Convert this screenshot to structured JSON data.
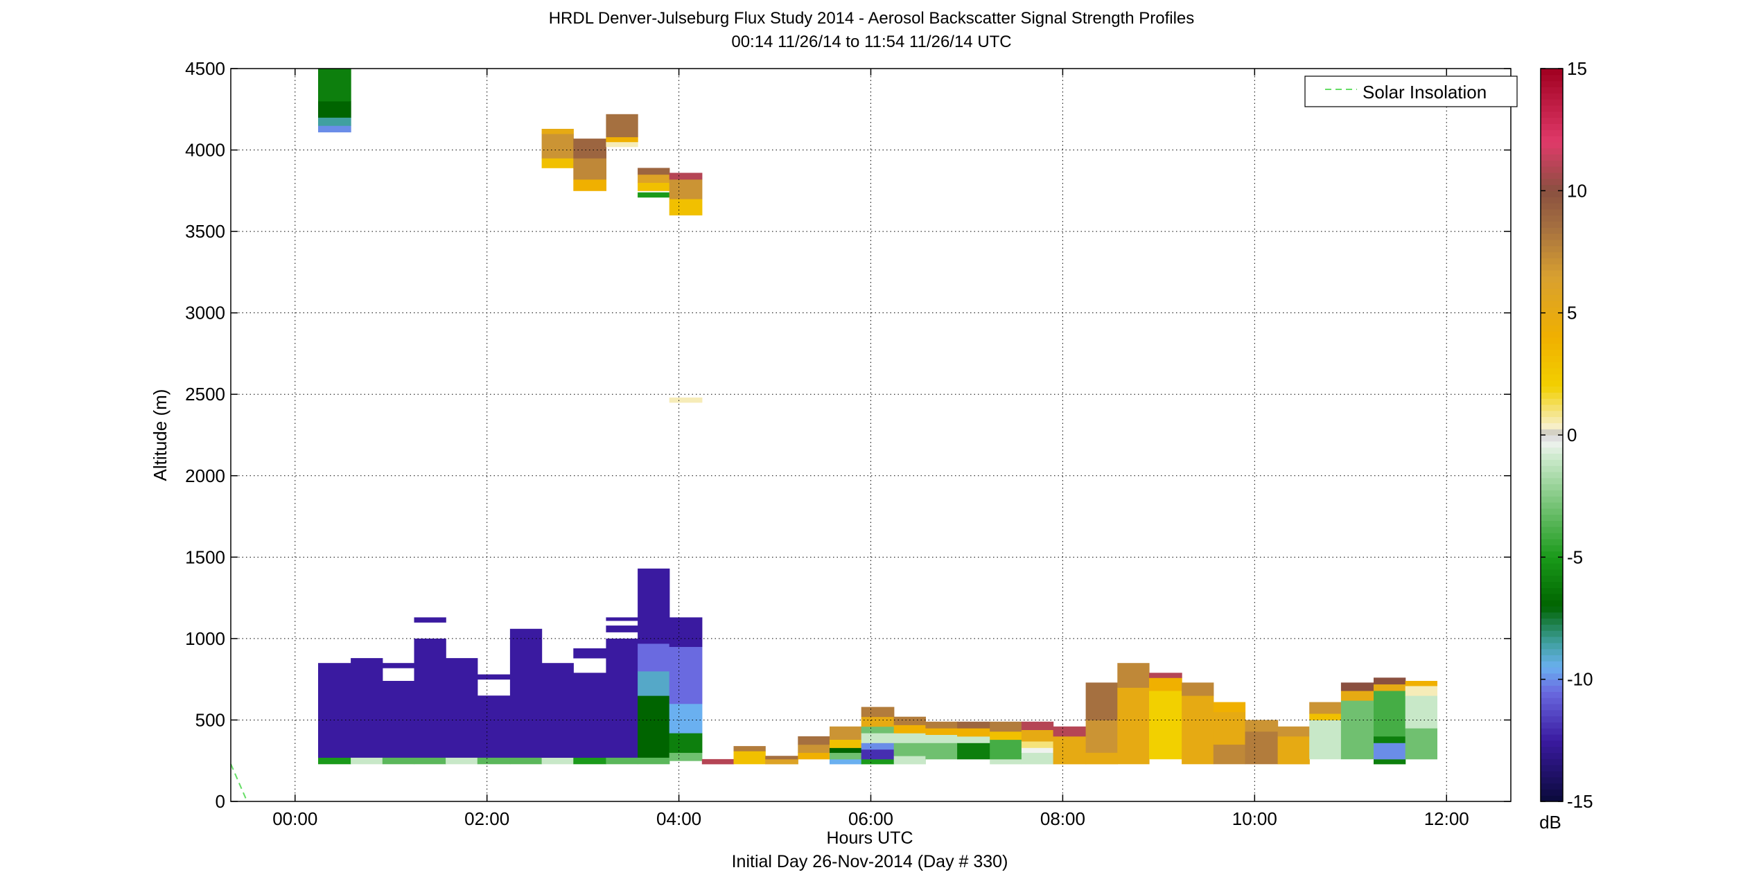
{
  "title_lines": [
    "HRDL Denver-Julseburg Flux Study 2014 - Aerosol Backscatter Signal Strength Profiles",
    "00:14 11/26/14 to 11:54 11/26/14  UTC"
  ],
  "xlabel": "Hours UTC",
  "xsublabel": "Initial Day 26-Nov-2014 (Day # 330)",
  "ylabel": "Altitude (m)",
  "colorbar_unit": "dB",
  "legend_label": "Solar Insolation",
  "colors": {
    "solar_line": "#66dd66",
    "grid": "#000000"
  },
  "chart_data": {
    "type": "heatmap",
    "xlim_hours": [
      -0.67,
      12.67
    ],
    "ylim": [
      0,
      4500
    ],
    "grid": true,
    "legend_position": "top-right",
    "x_ticks": [
      {
        "v": 0,
        "label": "00:00"
      },
      {
        "v": 2,
        "label": "02:00"
      },
      {
        "v": 4,
        "label": "04:00"
      },
      {
        "v": 6,
        "label": "06:00"
      },
      {
        "v": 8,
        "label": "08:00"
      },
      {
        "v": 10,
        "label": "10:00"
      },
      {
        "v": 12,
        "label": "12:00"
      }
    ],
    "y_ticks": [
      0,
      500,
      1000,
      1500,
      2000,
      2500,
      3000,
      3500,
      4000,
      4500
    ],
    "colorbar": {
      "min": -15,
      "max": 15,
      "ticks": [
        -15,
        -10,
        -5,
        0,
        5,
        10,
        15
      ],
      "unit": "dB",
      "stops": [
        {
          "v": -15,
          "c": "#0a0a3a"
        },
        {
          "v": -12.5,
          "c": "#3a1aa0"
        },
        {
          "v": -10.5,
          "c": "#6a6ae0"
        },
        {
          "v": -9.5,
          "c": "#6ab0f0"
        },
        {
          "v": -8.5,
          "c": "#40a0a0"
        },
        {
          "v": -7,
          "c": "#006400"
        },
        {
          "v": -5,
          "c": "#1a9a1a"
        },
        {
          "v": -3,
          "c": "#70c070"
        },
        {
          "v": -1,
          "c": "#c8e8c8"
        },
        {
          "v": -0.2,
          "c": "#f4f4f4"
        },
        {
          "v": 0,
          "c": "#bbbbbb"
        },
        {
          "v": 0.3,
          "c": "#f7f0d0"
        },
        {
          "v": 2,
          "c": "#f2d000"
        },
        {
          "v": 4,
          "c": "#f0b000"
        },
        {
          "v": 6.5,
          "c": "#d8a030"
        },
        {
          "v": 8.5,
          "c": "#a57040"
        },
        {
          "v": 10,
          "c": "#8a5040"
        },
        {
          "v": 12,
          "c": "#e03a6a"
        },
        {
          "v": 15,
          "c": "#a00020"
        }
      ]
    },
    "profiles": [
      {
        "t0": 0.24,
        "t1": 0.58,
        "segments": [
          {
            "y0": 230,
            "y1": 270,
            "v": -5
          },
          {
            "y0": 270,
            "y1": 850,
            "v": -12.5
          }
        ]
      },
      {
        "t0": 0.24,
        "t1": 0.58,
        "segments": [
          {
            "y0": 4110,
            "y1": 4150,
            "v": -10
          },
          {
            "y0": 4150,
            "y1": 4200,
            "v": -8.5
          },
          {
            "y0": 4200,
            "y1": 4300,
            "v": -7
          },
          {
            "y0": 4300,
            "y1": 4500,
            "v": -6
          }
        ]
      },
      {
        "t0": 0.58,
        "t1": 0.91,
        "segments": [
          {
            "y0": 230,
            "y1": 270,
            "v": -1
          },
          {
            "y0": 270,
            "y1": 880,
            "v": -12.5
          }
        ]
      },
      {
        "t0": 0.91,
        "t1": 1.24,
        "segments": [
          {
            "y0": 230,
            "y1": 270,
            "v": -3.5
          },
          {
            "y0": 270,
            "y1": 740,
            "v": -12.5
          },
          {
            "y0": 820,
            "y1": 850,
            "v": -12.5
          }
        ]
      },
      {
        "t0": 1.24,
        "t1": 1.57,
        "segments": [
          {
            "y0": 230,
            "y1": 270,
            "v": -3.5
          },
          {
            "y0": 270,
            "y1": 1000,
            "v": -12.5
          },
          {
            "y0": 1100,
            "y1": 1130,
            "v": -12.5
          }
        ]
      },
      {
        "t0": 1.57,
        "t1": 1.9,
        "segments": [
          {
            "y0": 230,
            "y1": 270,
            "v": -1
          },
          {
            "y0": 270,
            "y1": 880,
            "v": -12.5
          }
        ]
      },
      {
        "t0": 1.9,
        "t1": 2.24,
        "segments": [
          {
            "y0": 230,
            "y1": 270,
            "v": -3.5
          },
          {
            "y0": 270,
            "y1": 650,
            "v": -12.5
          },
          {
            "y0": 750,
            "y1": 780,
            "v": -12.5
          }
        ]
      },
      {
        "t0": 2.24,
        "t1": 2.57,
        "segments": [
          {
            "y0": 230,
            "y1": 270,
            "v": -3.5
          },
          {
            "y0": 270,
            "y1": 1060,
            "v": -12.5
          }
        ]
      },
      {
        "t0": 2.57,
        "t1": 2.9,
        "segments": [
          {
            "y0": 230,
            "y1": 270,
            "v": -1
          },
          {
            "y0": 270,
            "y1": 850,
            "v": -12.5
          }
        ]
      },
      {
        "t0": 2.57,
        "t1": 2.9,
        "segments": [
          {
            "y0": 3890,
            "y1": 3950,
            "v": 3
          },
          {
            "y0": 3950,
            "y1": 4100,
            "v": 7
          },
          {
            "y0": 4100,
            "y1": 4130,
            "v": 5
          }
        ]
      },
      {
        "t0": 2.9,
        "t1": 3.24,
        "segments": [
          {
            "y0": 230,
            "y1": 270,
            "v": -5
          },
          {
            "y0": 270,
            "y1": 790,
            "v": -12.5
          },
          {
            "y0": 880,
            "y1": 940,
            "v": -12.5
          }
        ]
      },
      {
        "t0": 2.9,
        "t1": 3.24,
        "segments": [
          {
            "y0": 3750,
            "y1": 3820,
            "v": 4
          },
          {
            "y0": 3820,
            "y1": 3950,
            "v": 7.5
          },
          {
            "y0": 3950,
            "y1": 4070,
            "v": 9
          }
        ]
      },
      {
        "t0": 3.24,
        "t1": 3.57,
        "segments": [
          {
            "y0": 230,
            "y1": 270,
            "v": -3.5
          },
          {
            "y0": 270,
            "y1": 1000,
            "v": -12.5
          },
          {
            "y0": 1040,
            "y1": 1080,
            "v": -12.5
          },
          {
            "y0": 1110,
            "y1": 1130,
            "v": -12.5
          }
        ]
      },
      {
        "t0": 3.24,
        "t1": 3.57,
        "segments": [
          {
            "y0": 4020,
            "y1": 4050,
            "v": 0.5
          },
          {
            "y0": 4050,
            "y1": 4080,
            "v": 4
          },
          {
            "y0": 4080,
            "y1": 4220,
            "v": 8.5
          }
        ]
      },
      {
        "t0": 3.57,
        "t1": 3.9,
        "segments": [
          {
            "y0": 230,
            "y1": 270,
            "v": -3.5
          },
          {
            "y0": 270,
            "y1": 650,
            "v": -7
          },
          {
            "y0": 650,
            "y1": 800,
            "v": -9
          },
          {
            "y0": 800,
            "y1": 970,
            "v": -10.5
          },
          {
            "y0": 970,
            "y1": 1430,
            "v": -12.5
          }
        ]
      },
      {
        "t0": 3.57,
        "t1": 3.9,
        "segments": [
          {
            "y0": 3710,
            "y1": 3740,
            "v": -5
          },
          {
            "y0": 3750,
            "y1": 3800,
            "v": 3
          },
          {
            "y0": 3800,
            "y1": 3850,
            "v": 6
          },
          {
            "y0": 3850,
            "y1": 3890,
            "v": 9
          }
        ]
      },
      {
        "t0": 3.9,
        "t1": 4.24,
        "segments": [
          {
            "y0": 250,
            "y1": 300,
            "v": -3
          },
          {
            "y0": 300,
            "y1": 420,
            "v": -6
          },
          {
            "y0": 420,
            "y1": 600,
            "v": -9.5
          },
          {
            "y0": 600,
            "y1": 950,
            "v": -10.5
          },
          {
            "y0": 950,
            "y1": 1130,
            "v": -12.5
          }
        ]
      },
      {
        "t0": 3.9,
        "t1": 4.24,
        "segments": [
          {
            "y0": 3600,
            "y1": 3700,
            "v": 3
          },
          {
            "y0": 3700,
            "y1": 3820,
            "v": 7
          },
          {
            "y0": 3820,
            "y1": 3860,
            "v": 11
          }
        ]
      },
      {
        "t0": 3.9,
        "t1": 4.24,
        "segments": [
          {
            "y0": 2450,
            "y1": 2480,
            "v": 0.5
          }
        ]
      },
      {
        "t0": 4.24,
        "t1": 4.57,
        "segments": [
          {
            "y0": 230,
            "y1": 260,
            "v": 11
          }
        ]
      },
      {
        "t0": 4.57,
        "t1": 4.9,
        "segments": [
          {
            "y0": 230,
            "y1": 310,
            "v": 3
          },
          {
            "y0": 310,
            "y1": 340,
            "v": 8
          }
        ]
      },
      {
        "t0": 4.9,
        "t1": 5.24,
        "segments": [
          {
            "y0": 230,
            "y1": 260,
            "v": 6
          },
          {
            "y0": 260,
            "y1": 280,
            "v": 8.5
          }
        ]
      },
      {
        "t0": 5.24,
        "t1": 5.57,
        "segments": [
          {
            "y0": 260,
            "y1": 300,
            "v": 4
          },
          {
            "y0": 300,
            "y1": 350,
            "v": 7
          },
          {
            "y0": 350,
            "y1": 400,
            "v": 8.5
          }
        ]
      },
      {
        "t0": 5.57,
        "t1": 5.9,
        "segments": [
          {
            "y0": 230,
            "y1": 260,
            "v": -9.5
          },
          {
            "y0": 260,
            "y1": 300,
            "v": -3
          },
          {
            "y0": 300,
            "y1": 330,
            "v": -7
          },
          {
            "y0": 330,
            "y1": 380,
            "v": 3
          },
          {
            "y0": 380,
            "y1": 460,
            "v": 7
          }
        ]
      },
      {
        "t0": 5.9,
        "t1": 6.24,
        "segments": [
          {
            "y0": 230,
            "y1": 260,
            "v": -5
          },
          {
            "y0": 260,
            "y1": 320,
            "v": -12
          },
          {
            "y0": 320,
            "y1": 360,
            "v": -10
          },
          {
            "y0": 360,
            "y1": 420,
            "v": -1
          },
          {
            "y0": 420,
            "y1": 460,
            "v": -3
          },
          {
            "y0": 460,
            "y1": 520,
            "v": 5
          },
          {
            "y0": 520,
            "y1": 580,
            "v": 8
          }
        ]
      },
      {
        "t0": 6.24,
        "t1": 6.57,
        "segments": [
          {
            "y0": 230,
            "y1": 280,
            "v": -1
          },
          {
            "y0": 280,
            "y1": 360,
            "v": -3
          },
          {
            "y0": 360,
            "y1": 420,
            "v": -1
          },
          {
            "y0": 420,
            "y1": 470,
            "v": 4
          },
          {
            "y0": 470,
            "y1": 520,
            "v": 8
          }
        ]
      },
      {
        "t0": 6.57,
        "t1": 6.9,
        "segments": [
          {
            "y0": 260,
            "y1": 360,
            "v": -3
          },
          {
            "y0": 360,
            "y1": 410,
            "v": -1
          },
          {
            "y0": 410,
            "y1": 450,
            "v": 4
          },
          {
            "y0": 450,
            "y1": 490,
            "v": 8
          }
        ]
      },
      {
        "t0": 6.9,
        "t1": 7.24,
        "segments": [
          {
            "y0": 260,
            "y1": 360,
            "v": -6
          },
          {
            "y0": 360,
            "y1": 400,
            "v": -1
          },
          {
            "y0": 400,
            "y1": 450,
            "v": 4
          },
          {
            "y0": 450,
            "y1": 490,
            "v": 9
          }
        ]
      },
      {
        "t0": 7.24,
        "t1": 7.57,
        "segments": [
          {
            "y0": 230,
            "y1": 260,
            "v": -1
          },
          {
            "y0": 260,
            "y1": 380,
            "v": -4
          },
          {
            "y0": 380,
            "y1": 430,
            "v": 3
          },
          {
            "y0": 430,
            "y1": 490,
            "v": 8
          }
        ]
      },
      {
        "t0": 7.57,
        "t1": 7.9,
        "segments": [
          {
            "y0": 230,
            "y1": 300,
            "v": -1
          },
          {
            "y0": 300,
            "y1": 330,
            "v": -0.3
          },
          {
            "y0": 330,
            "y1": 370,
            "v": 1
          },
          {
            "y0": 370,
            "y1": 440,
            "v": 5
          },
          {
            "y0": 440,
            "y1": 490,
            "v": 11
          }
        ]
      },
      {
        "t0": 7.9,
        "t1": 8.24,
        "segments": [
          {
            "y0": 230,
            "y1": 400,
            "v": 5
          },
          {
            "y0": 400,
            "y1": 460,
            "v": 11
          }
        ]
      },
      {
        "t0": 8.24,
        "t1": 8.57,
        "segments": [
          {
            "y0": 230,
            "y1": 300,
            "v": 5
          },
          {
            "y0": 300,
            "y1": 500,
            "v": 7
          },
          {
            "y0": 500,
            "y1": 730,
            "v": 8.5
          }
        ]
      },
      {
        "t0": 8.57,
        "t1": 8.9,
        "segments": [
          {
            "y0": 230,
            "y1": 700,
            "v": 5
          },
          {
            "y0": 700,
            "y1": 850,
            "v": 7.5
          }
        ]
      },
      {
        "t0": 8.9,
        "t1": 9.24,
        "segments": [
          {
            "y0": 260,
            "y1": 680,
            "v": 2
          },
          {
            "y0": 680,
            "y1": 760,
            "v": 4
          },
          {
            "y0": 760,
            "y1": 790,
            "v": 11
          }
        ]
      },
      {
        "t0": 9.24,
        "t1": 9.57,
        "segments": [
          {
            "y0": 230,
            "y1": 650,
            "v": 5
          },
          {
            "y0": 650,
            "y1": 730,
            "v": 7.5
          }
        ]
      },
      {
        "t0": 9.57,
        "t1": 9.9,
        "segments": [
          {
            "y0": 230,
            "y1": 350,
            "v": 7.5
          },
          {
            "y0": 350,
            "y1": 550,
            "v": 5
          },
          {
            "y0": 550,
            "y1": 610,
            "v": 4
          }
        ]
      },
      {
        "t0": 9.9,
        "t1": 10.24,
        "segments": [
          {
            "y0": 230,
            "y1": 430,
            "v": 8
          },
          {
            "y0": 430,
            "y1": 500,
            "v": 7
          }
        ]
      },
      {
        "t0": 10.24,
        "t1": 10.57,
        "segments": [
          {
            "y0": 230,
            "y1": 400,
            "v": 5
          },
          {
            "y0": 400,
            "y1": 460,
            "v": 7
          }
        ]
      },
      {
        "t0": 10.57,
        "t1": 10.9,
        "segments": [
          {
            "y0": 260,
            "y1": 500,
            "v": -1
          },
          {
            "y0": 500,
            "y1": 540,
            "v": 3
          },
          {
            "y0": 540,
            "y1": 610,
            "v": 7
          }
        ]
      },
      {
        "t0": 10.9,
        "t1": 11.24,
        "segments": [
          {
            "y0": 260,
            "y1": 620,
            "v": -3
          },
          {
            "y0": 620,
            "y1": 680,
            "v": 5
          },
          {
            "y0": 680,
            "y1": 730,
            "v": 10
          }
        ]
      },
      {
        "t0": 11.24,
        "t1": 11.57,
        "segments": [
          {
            "y0": 230,
            "y1": 260,
            "v": -6
          },
          {
            "y0": 260,
            "y1": 360,
            "v": -10
          },
          {
            "y0": 360,
            "y1": 400,
            "v": -6
          },
          {
            "y0": 400,
            "y1": 680,
            "v": -4
          },
          {
            "y0": 680,
            "y1": 720,
            "v": 5
          },
          {
            "y0": 720,
            "y1": 760,
            "v": 10
          }
        ]
      },
      {
        "t0": 11.57,
        "t1": 11.9,
        "segments": [
          {
            "y0": 260,
            "y1": 450,
            "v": -3
          },
          {
            "y0": 450,
            "y1": 650,
            "v": -1
          },
          {
            "y0": 650,
            "y1": 710,
            "v": 0.5
          },
          {
            "y0": 710,
            "y1": 740,
            "v": 4
          }
        ]
      }
    ],
    "solar_insolation": {
      "x": [
        -0.67,
        -0.5
      ],
      "y": [
        230,
        0
      ]
    }
  }
}
